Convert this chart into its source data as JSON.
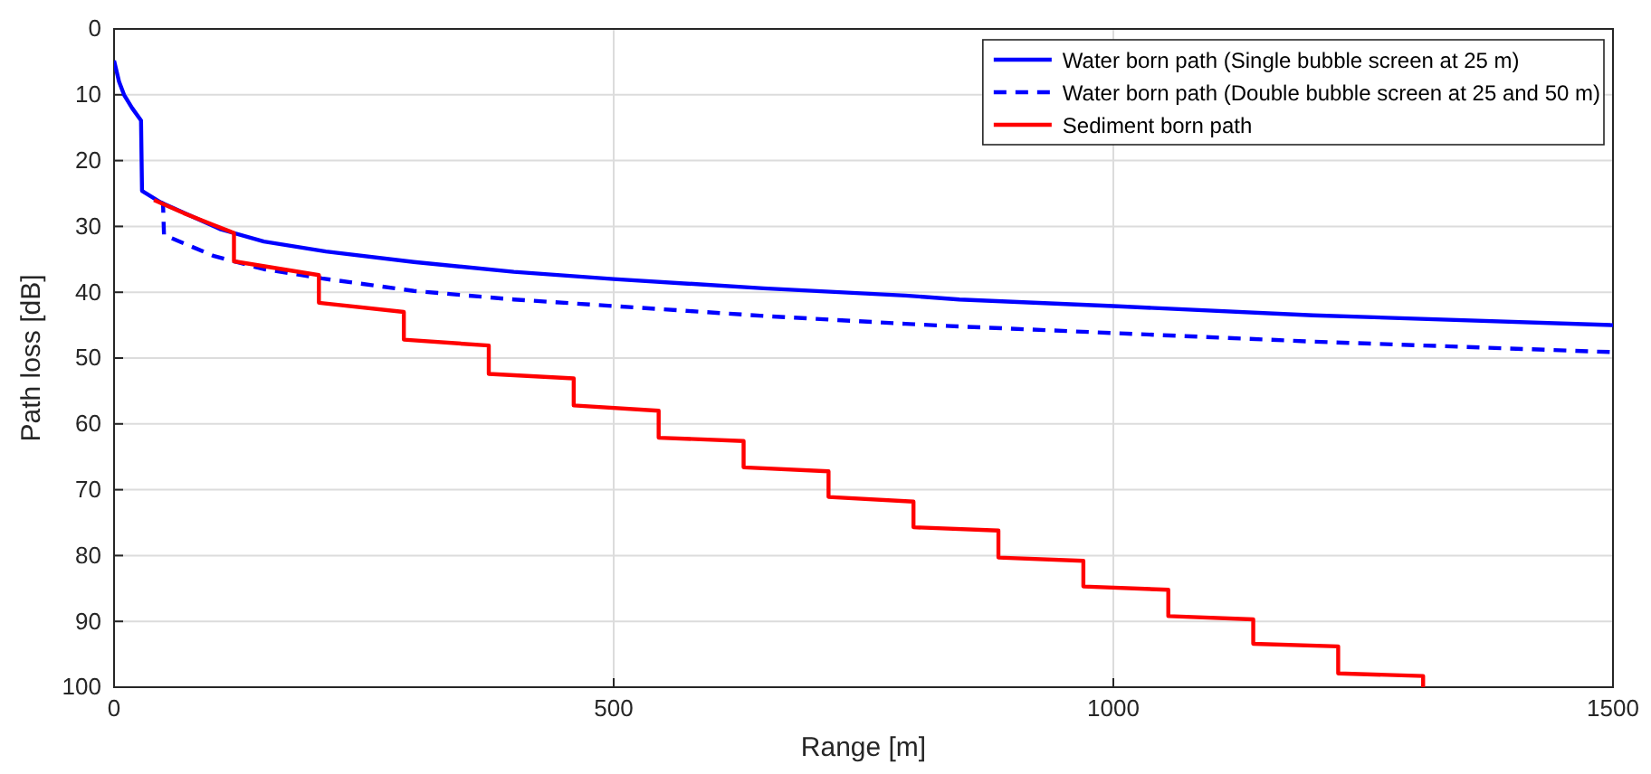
{
  "chart_data": {
    "type": "line",
    "xlabel": "Range [m]",
    "ylabel": "Path loss [dB]",
    "xlim": [
      0,
      1500
    ],
    "xticks": [
      0,
      500,
      1000,
      1500
    ],
    "ylim": [
      100,
      0
    ],
    "yticks": [
      0,
      10,
      20,
      30,
      40,
      50,
      60,
      70,
      80,
      90,
      100
    ],
    "grid": true,
    "legend": "top right",
    "series": [
      {
        "name": "Water born path (Single bubble screen at 25 m)",
        "color": "#0000ff",
        "line_style": "solid",
        "x": [
          0,
          5,
          10,
          18,
          27,
          28,
          46,
          70,
          106,
          150,
          212,
          300,
          400,
          500,
          650,
          792,
          846,
          1000,
          1200,
          1500
        ],
        "values": [
          4.8,
          8,
          10,
          12,
          13.9,
          24.6,
          26.3,
          null,
          30.4,
          32.3,
          33.8,
          35.4,
          36.9,
          38.0,
          39.4,
          40.5,
          41.1,
          42.1,
          43.5,
          45.0
        ]
      },
      {
        "name": "Water born path (Double bubble screen at 25 and 50 m)",
        "color": "#0000ff",
        "line_style": "dashed",
        "x": [
          46,
          49,
          50,
          100,
          150,
          208,
          300,
          400,
          500,
          650,
          792,
          846,
          1000,
          1200,
          1500
        ],
        "values": [
          26.3,
          26.5,
          31.3,
          34.5,
          36.5,
          37.9,
          39.8,
          41.1,
          42.1,
          43.6,
          44.8,
          45.2,
          46.2,
          47.5,
          49.1
        ]
      },
      {
        "name": "Sediment born path",
        "color": "#ff0000",
        "line_style": "solid",
        "x": [
          40,
          70,
          100,
          120,
          120,
          205,
          205,
          290,
          290,
          375,
          375,
          460,
          460,
          545,
          545,
          630,
          630,
          715,
          715,
          800,
          800,
          885,
          885,
          970,
          970,
          1055,
          1055,
          1140,
          1140,
          1225,
          1225,
          1310,
          1310
        ],
        "values": [
          26.0,
          28.0,
          29.8,
          31.0,
          35.3,
          37.4,
          41.6,
          43.0,
          47.2,
          48.1,
          52.4,
          53.1,
          57.2,
          58.0,
          62.1,
          62.6,
          66.6,
          67.2,
          71.1,
          71.8,
          75.7,
          76.2,
          80.3,
          80.8,
          84.7,
          85.2,
          89.2,
          89.7,
          93.4,
          93.8,
          97.9,
          98.3,
          100
        ]
      }
    ]
  }
}
